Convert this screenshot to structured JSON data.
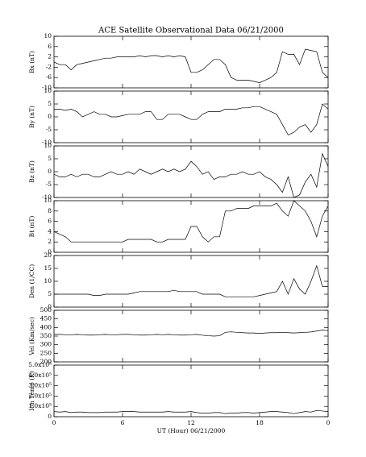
{
  "chart_data": [
    {
      "type": "line",
      "title": "ACE Satellite Observational Data   06/21/2000",
      "ylabel": "Bx (nT)",
      "x": [
        0,
        0.5,
        1,
        1.5,
        2,
        2.5,
        3,
        3.5,
        4,
        4.5,
        5,
        5.5,
        6,
        6.5,
        7,
        7.5,
        8,
        8.5,
        9,
        9.5,
        10,
        10.5,
        11,
        11.5,
        12,
        12.5,
        13,
        13.5,
        14,
        14.5,
        15,
        15.5,
        16,
        16.5,
        17,
        17.5,
        18,
        18.5,
        19,
        19.5,
        20,
        20.5,
        21,
        21.5,
        22,
        22.5,
        23,
        23.5,
        24
      ],
      "series": [
        {
          "color": "#000000",
          "values": [
            0,
            -1,
            -1,
            -3,
            -1,
            -0.5,
            0,
            0.5,
            1,
            1.5,
            1.5,
            2,
            2,
            2,
            2,
            2.5,
            2,
            2.5,
            2.5,
            2,
            2.5,
            2,
            2.5,
            2,
            -4,
            -4,
            -3,
            -1,
            1,
            1,
            -1,
            -6,
            -7,
            -7,
            -7,
            -7.5,
            -8,
            -7,
            -6,
            -4,
            4,
            3,
            3,
            -1,
            5,
            4.5,
            4,
            -4,
            -6
          ]
        }
      ],
      "xlim": [
        0,
        24
      ],
      "xticks": [
        0,
        6,
        12,
        18,
        24
      ],
      "ylim": [
        -10,
        10
      ],
      "yticks": [
        -10,
        -6,
        -2,
        2,
        6,
        10
      ]
    },
    {
      "type": "line",
      "ylabel": "By (nT)",
      "x": [
        0,
        0.5,
        1,
        1.5,
        2,
        2.5,
        3,
        3.5,
        4,
        4.5,
        5,
        5.5,
        6,
        6.5,
        7,
        7.5,
        8,
        8.5,
        9,
        9.5,
        10,
        10.5,
        11,
        11.5,
        12,
        12.5,
        13,
        13.5,
        14,
        14.5,
        15,
        15.5,
        16,
        16.5,
        17,
        17.5,
        18,
        18.5,
        19,
        19.5,
        20,
        20.5,
        21,
        21.5,
        22,
        22.5,
        23,
        23.5,
        24
      ],
      "series": [
        {
          "color": "#000000",
          "values": [
            3,
            3,
            2.5,
            3,
            2,
            0,
            1,
            2,
            1,
            1,
            0,
            0,
            0.5,
            1,
            1,
            1,
            2,
            2,
            -1,
            -1,
            1,
            1,
            1,
            0,
            -1,
            -1,
            1,
            2,
            2,
            2,
            3,
            3,
            3,
            3.5,
            3.5,
            4,
            4,
            3,
            2,
            1,
            -3,
            -7,
            -6,
            -4,
            -3,
            -6,
            -3,
            5,
            3
          ]
        }
      ],
      "xlim": [
        0,
        24
      ],
      "xticks": [
        0,
        6,
        12,
        18,
        24
      ],
      "ylim": [
        -10,
        10
      ],
      "yticks": [
        -10,
        -5,
        0,
        5,
        10
      ]
    },
    {
      "type": "line",
      "ylabel": "Bz (nT)",
      "x": [
        0,
        0.5,
        1,
        1.5,
        2,
        2.5,
        3,
        3.5,
        4,
        4.5,
        5,
        5.5,
        6,
        6.5,
        7,
        7.5,
        8,
        8.5,
        9,
        9.5,
        10,
        10.5,
        11,
        11.5,
        12,
        12.5,
        13,
        13.5,
        14,
        14.5,
        15,
        15.5,
        16,
        16.5,
        17,
        17.5,
        18,
        18.5,
        19,
        19.5,
        20,
        20.5,
        21,
        21.5,
        22,
        22.5,
        23,
        23.5,
        24
      ],
      "series": [
        {
          "color": "#000000",
          "values": [
            -1,
            -2,
            -2,
            -1,
            -2,
            -1,
            -1,
            -2,
            -2,
            -1,
            0,
            -1,
            -1,
            0,
            -1,
            1,
            0,
            -1,
            0,
            1,
            0,
            1,
            0,
            1,
            4,
            2,
            -1,
            0,
            -3,
            -2,
            -2,
            -1,
            -1,
            0,
            -1,
            -1,
            0,
            -2,
            -3,
            -5,
            -8,
            -2,
            -10,
            -9,
            -4,
            -1,
            -6,
            7,
            2
          ]
        }
      ],
      "xlim": [
        0,
        24
      ],
      "xticks": [
        0,
        6,
        12,
        18,
        24
      ],
      "ylim": [
        -10,
        10
      ],
      "yticks": [
        -10,
        -5,
        0,
        5,
        10
      ]
    },
    {
      "type": "line",
      "ylabel": "Bt (nT)",
      "x": [
        0,
        0.5,
        1,
        1.5,
        2,
        2.5,
        3,
        3.5,
        4,
        4.5,
        5,
        5.5,
        6,
        6.5,
        7,
        7.5,
        8,
        8.5,
        9,
        9.5,
        10,
        10.5,
        11,
        11.5,
        12,
        12.5,
        13,
        13.5,
        14,
        14.5,
        15,
        15.5,
        16,
        16.5,
        17,
        17.5,
        18,
        18.5,
        19,
        19.5,
        20,
        20.5,
        21,
        21.5,
        22,
        22.5,
        23,
        23.5,
        24
      ],
      "series": [
        {
          "color": "#000000",
          "values": [
            4,
            3.5,
            3,
            2,
            2,
            2,
            2,
            2,
            2,
            2,
            2,
            2,
            2,
            2.5,
            2.5,
            2.5,
            2.5,
            2.5,
            2,
            2,
            2.5,
            2.5,
            2.5,
            2.5,
            5,
            5,
            3,
            2,
            3,
            3,
            8,
            8,
            8.5,
            8.5,
            8.5,
            9,
            9,
            9,
            9,
            9.5,
            8,
            7,
            10,
            9,
            8,
            6,
            3,
            7,
            9
          ]
        }
      ],
      "xlim": [
        0,
        24
      ],
      "xticks": [
        0,
        6,
        12,
        18,
        24
      ],
      "ylim": [
        0,
        10
      ],
      "yticks": [
        0,
        2,
        4,
        6,
        8,
        10
      ]
    },
    {
      "type": "line",
      "ylabel": "Den (1/CC)",
      "x": [
        0,
        0.5,
        1,
        1.5,
        2,
        2.5,
        3,
        3.5,
        4,
        4.5,
        5,
        5.5,
        6,
        6.5,
        7,
        7.5,
        8,
        8.5,
        9,
        9.5,
        10,
        10.5,
        11,
        11.5,
        12,
        12.5,
        13,
        13.5,
        14,
        14.5,
        15,
        15.5,
        16,
        16.5,
        17,
        17.5,
        18,
        18.5,
        19,
        19.5,
        20,
        20.5,
        21,
        21.5,
        22,
        22.5,
        23,
        23.5,
        24
      ],
      "series": [
        {
          "color": "#000000",
          "values": [
            5,
            5,
            5,
            5,
            5,
            5,
            5,
            4.5,
            4.5,
            5,
            5,
            5,
            5,
            5,
            5.5,
            6,
            6,
            6,
            6,
            6,
            6,
            6.5,
            6,
            6,
            6,
            6,
            5,
            5,
            5,
            5,
            4,
            4,
            4,
            4,
            4,
            4,
            4.5,
            5,
            5.5,
            6,
            10,
            5,
            11,
            7,
            5,
            10,
            16,
            8,
            8
          ]
        }
      ],
      "xlim": [
        0,
        24
      ],
      "xticks": [
        0,
        6,
        12,
        18,
        24
      ],
      "ylim": [
        0,
        20
      ],
      "yticks": [
        0,
        5,
        10,
        15,
        20
      ]
    },
    {
      "type": "line",
      "ylabel": "Vel (Km/sec)",
      "x": [
        0,
        0.5,
        1,
        1.5,
        2,
        2.5,
        3,
        3.5,
        4,
        4.5,
        5,
        5.5,
        6,
        6.5,
        7,
        7.5,
        8,
        8.5,
        9,
        9.5,
        10,
        10.5,
        11,
        11.5,
        12,
        12.5,
        13,
        13.5,
        14,
        14.5,
        15,
        15.5,
        16,
        16.5,
        17,
        17.5,
        18,
        18.5,
        19,
        19.5,
        20,
        20.5,
        21,
        21.5,
        22,
        22.5,
        23,
        23.5,
        24
      ],
      "series": [
        {
          "color": "#000000",
          "values": [
            360,
            360,
            358,
            358,
            360,
            358,
            356,
            356,
            358,
            360,
            358,
            358,
            360,
            360,
            358,
            356,
            356,
            358,
            360,
            358,
            360,
            358,
            356,
            356,
            358,
            360,
            355,
            352,
            350,
            352,
            372,
            375,
            372,
            370,
            368,
            368,
            366,
            368,
            370,
            370,
            372,
            370,
            368,
            370,
            372,
            374,
            380,
            385,
            382
          ]
        }
      ],
      "xlim": [
        0,
        24
      ],
      "xticks": [
        0,
        6,
        12,
        18,
        24
      ],
      "ylim": [
        200,
        500
      ],
      "yticks": [
        200,
        250,
        300,
        350,
        400,
        450,
        500
      ]
    },
    {
      "type": "line",
      "ylabel": "Ion Temp (K)",
      "xlabel": "UT (Hour)   06/21/2000",
      "x": [
        0,
        0.5,
        1,
        1.5,
        2,
        2.5,
        3,
        3.5,
        4,
        4.5,
        5,
        5.5,
        6,
        6.5,
        7,
        7.5,
        8,
        8.5,
        9,
        9.5,
        10,
        10.5,
        11,
        11.5,
        12,
        12.5,
        13,
        13.5,
        14,
        14.5,
        15,
        15.5,
        16,
        16.5,
        17,
        17.5,
        18,
        18.5,
        19,
        19.5,
        20,
        20.5,
        21,
        21.5,
        22,
        22.5,
        23,
        23.5,
        24
      ],
      "series": [
        {
          "color": "#000000",
          "values": [
            50000,
            45000,
            50000,
            40000,
            45000,
            45000,
            40000,
            40000,
            40000,
            45000,
            45000,
            45000,
            50000,
            50000,
            50000,
            45000,
            45000,
            45000,
            45000,
            45000,
            50000,
            45000,
            45000,
            45000,
            50000,
            40000,
            35000,
            35000,
            40000,
            40000,
            30000,
            35000,
            35000,
            40000,
            40000,
            35000,
            40000,
            45000,
            50000,
            50000,
            45000,
            40000,
            30000,
            40000,
            50000,
            45000,
            60000,
            55000,
            50000
          ]
        }
      ],
      "xlim": [
        0,
        24
      ],
      "xticks": [
        0,
        6,
        12,
        18,
        {
          "value": 24,
          "label": "0"
        }
      ],
      "ylim": [
        0,
        500000
      ],
      "yticks": [
        0,
        {
          "value": 100000,
          "label": "1.0x10⁵"
        },
        {
          "value": 200000,
          "label": "2.0x10⁵"
        },
        {
          "value": 300000,
          "label": "3.0x10⁵"
        },
        {
          "value": 400000,
          "label": "4.0x10⁵"
        },
        {
          "value": 500000,
          "label": "5.0x10⁵"
        }
      ]
    }
  ]
}
